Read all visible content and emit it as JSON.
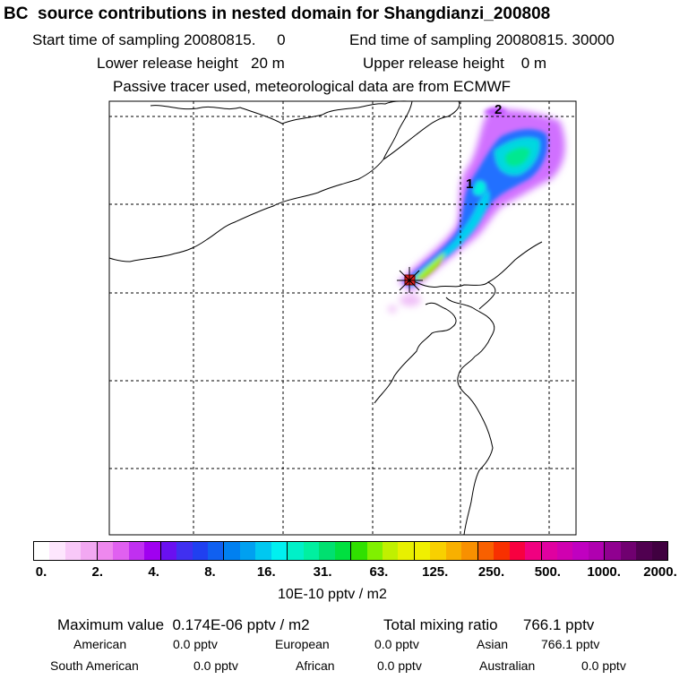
{
  "header": {
    "title": "BC  source contributions in nested domain for Shangdianzi_200808",
    "start_time": "Start time of sampling 20080815.     0",
    "end_time": "End time of sampling 20080815. 30000",
    "lower_release": "Lower release height   20 m",
    "upper_release": "Upper release height    0 m",
    "tracer_note": "Passive tracer used, meteorological data are from ECMWF"
  },
  "map": {
    "label_1": "1",
    "label_2": "2",
    "receptor_marker": "receptor-cross-icon"
  },
  "colorbar": {
    "ticks": [
      "0.",
      "2.",
      "4.",
      "8.",
      "16.",
      "31.",
      "63.",
      "125.",
      "250.",
      "500.",
      "1000.",
      "2000."
    ],
    "units": "10E-10 pptv / m2",
    "colors": [
      "#ffffff",
      "#fde6fd",
      "#f8c8f8",
      "#f2a8f2",
      "#ee88ee",
      "#e060f0",
      "#c030f0",
      "#a000f0",
      "#6a10f0",
      "#4030f0",
      "#2040f0",
      "#1060f0",
      "#0080f0",
      "#00a0f0",
      "#00c8f0",
      "#00f0f0",
      "#00f0c8",
      "#00f0a0",
      "#00e070",
      "#00e040",
      "#30e000",
      "#80f000",
      "#c0f000",
      "#e8f000",
      "#f0f000",
      "#f8d000",
      "#f8b000",
      "#f89000",
      "#f86000",
      "#f83000",
      "#f80040",
      "#f00080",
      "#e000a0",
      "#d000b0",
      "#c000c0",
      "#b000b0",
      "#900090",
      "#700070",
      "#500050",
      "#400040"
    ]
  },
  "summary": {
    "max_value": "Maximum value  0.174E-06 pptv / m2",
    "total_mixing": "Total mixing ratio      766.1 pptv",
    "american": "American",
    "american_val": "0.0 pptv",
    "european": "European",
    "european_val": "0.0 pptv",
    "asian": "Asian",
    "asian_val": "766.1 pptv",
    "south_american": "South American",
    "south_american_val": "0.0 pptv",
    "african": "African",
    "african_val": "0.0 pptv",
    "australian": "Australian",
    "australian_val": "0.0 pptv"
  }
}
